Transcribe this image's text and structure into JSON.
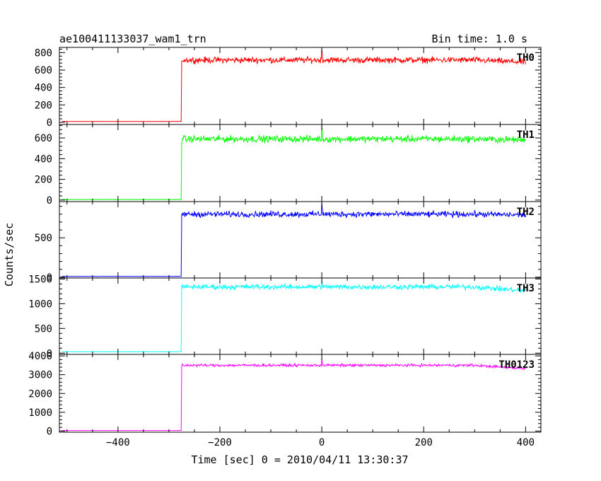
{
  "chart_data": {
    "type": "line",
    "title": "ae100411133037_wam1_trn",
    "bin_time_label": "Bin time: 1.0 s",
    "xlabel": "Time [sec] 0 = 2010/04/11 13:30:37",
    "ylabel": "Counts/sec",
    "xlim": [
      -515,
      430
    ],
    "x_ticks": [
      -400,
      -200,
      0,
      200,
      400
    ],
    "x_tick_labels": [
      "−400",
      "−200",
      "0",
      "200",
      "400"
    ],
    "step_time": -275,
    "x_start": -510,
    "x_end": 400,
    "grid": false,
    "panels": [
      {
        "name": "TH0",
        "color": "#ff0000",
        "ylim": [
          -25,
          860
        ],
        "y_ticks": [
          0,
          200,
          400,
          600,
          800
        ],
        "y_tick_labels": [
          "0",
          "200",
          "400",
          "600",
          "800"
        ],
        "pre_level": 10,
        "post_level": 715,
        "noise": 30,
        "spike_value": 840,
        "final_level": 690
      },
      {
        "name": "TH1",
        "color": "#00ff00",
        "ylim": [
          -15,
          730
        ],
        "y_ticks": [
          0,
          200,
          400,
          600
        ],
        "y_tick_labels": [
          "0",
          "200",
          "400",
          "600"
        ],
        "pre_level": 5,
        "post_level": 590,
        "noise": 28,
        "spike_value": 720,
        "final_level": 580
      },
      {
        "name": "TH2",
        "color": "#0000ff",
        "ylim": [
          -10,
          960
        ],
        "y_ticks": [
          0,
          500
        ],
        "y_tick_labels": [
          "0",
          "500"
        ],
        "pre_level": 10,
        "post_level": 800,
        "noise": 32,
        "spike_value": 940,
        "final_level": 790
      },
      {
        "name": "TH3",
        "color": "#00ffff",
        "ylim": [
          -25,
          1520
        ],
        "y_ticks": [
          0,
          500,
          1000,
          1500
        ],
        "y_tick_labels": [
          "0",
          "500",
          "1000",
          "1500"
        ],
        "pre_level": 30,
        "post_level": 1340,
        "noise": 45,
        "spike_value": 1480,
        "final_level": 1260
      },
      {
        "name": "TH0123",
        "color": "#ff00ff",
        "ylim": [
          -60,
          4080
        ],
        "y_ticks": [
          0,
          1000,
          2000,
          3000,
          4000
        ],
        "y_tick_labels": [
          "0",
          "1000",
          "2000",
          "3000",
          "4000"
        ],
        "pre_level": 30,
        "post_level": 3500,
        "noise": 60,
        "spike_value": 3850,
        "final_level": 3320
      }
    ]
  }
}
